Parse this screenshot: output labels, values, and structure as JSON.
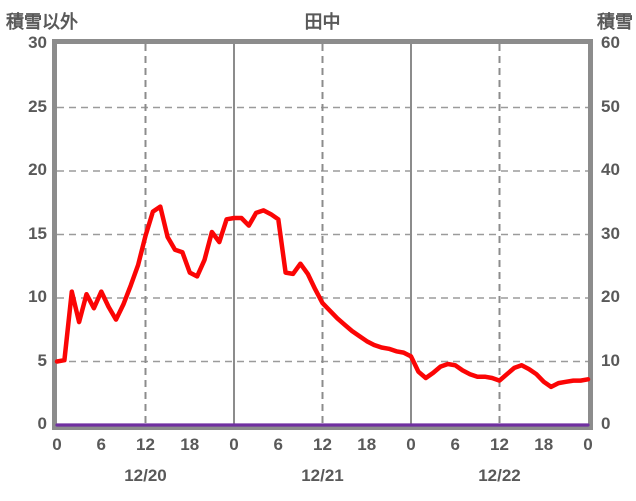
{
  "header": {
    "left_axis_title": "積雪以外",
    "chart_title": "田中",
    "right_axis_title": "積雪"
  },
  "colors": {
    "background": "#ffffff",
    "frame": "#8c8c8c",
    "grid_dashed": "#9b9b9b",
    "grid_vertical": "#8c8c8c",
    "text": "#595959",
    "red_series": "#fb0505",
    "purple_series": "#7030a0"
  },
  "chart_data": {
    "type": "line",
    "title": "田中",
    "left_axis": {
      "label": "積雪以外",
      "min": 0,
      "max": 30,
      "ticks": [
        0,
        5,
        10,
        15,
        20,
        25,
        30
      ]
    },
    "right_axis": {
      "label": "積雪",
      "min": 0,
      "max": 60,
      "ticks": [
        0,
        10,
        20,
        30,
        40,
        50,
        60
      ]
    },
    "x_axis": {
      "unit": "hours",
      "min_hour": 0,
      "max_hour": 72,
      "tick_step_hours": 6,
      "tick_labels": [
        "0",
        "6",
        "12",
        "18",
        "0",
        "6",
        "12",
        "18",
        "0",
        "6",
        "12",
        "18",
        "0"
      ],
      "date_labels": [
        {
          "label": "12/20",
          "hour": 12
        },
        {
          "label": "12/21",
          "hour": 36
        },
        {
          "label": "12/22",
          "hour": 60
        }
      ]
    },
    "gridlines": {
      "horizontal_dashed_at_left_values": [
        5,
        10,
        15,
        20,
        25
      ],
      "vertical_dashed_at_hours": [
        12,
        36,
        60
      ],
      "vertical_solid_at_hours": [
        24,
        48
      ]
    },
    "legend": "none",
    "series": [
      {
        "name": "積雪以外",
        "axis": "left",
        "color": "#fb0505",
        "x_step_hours": 1,
        "values": [
          5.0,
          5.1,
          10.5,
          8.1,
          10.3,
          9.2,
          10.5,
          9.3,
          8.3,
          9.5,
          11.0,
          12.6,
          14.9,
          16.8,
          17.2,
          14.8,
          13.8,
          13.6,
          12.0,
          11.7,
          13.0,
          15.2,
          14.4,
          16.2,
          16.3,
          16.3,
          15.7,
          16.7,
          16.9,
          16.6,
          16.2,
          12.0,
          11.9,
          12.7,
          11.9,
          10.7,
          9.6,
          9.0,
          8.4,
          7.9,
          7.4,
          7.0,
          6.6,
          6.3,
          6.1,
          6.0,
          5.8,
          5.7,
          5.4,
          4.2,
          3.7,
          4.1,
          4.6,
          4.8,
          4.7,
          4.3,
          4.0,
          3.8,
          3.8,
          3.7,
          3.5,
          4.0,
          4.5,
          4.7,
          4.4,
          4.0,
          3.4,
          3.0,
          3.3,
          3.4,
          3.5,
          3.5,
          3.6
        ]
      },
      {
        "name": "積雪",
        "axis": "right",
        "color": "#7030a0",
        "x_step_hours": 1,
        "values": [
          0,
          0,
          0,
          0,
          0,
          0,
          0,
          0,
          0,
          0,
          0,
          0,
          0,
          0,
          0,
          0,
          0,
          0,
          0,
          0,
          0,
          0,
          0,
          0,
          0,
          0,
          0,
          0,
          0,
          0,
          0,
          0,
          0,
          0,
          0,
          0,
          0,
          0,
          0,
          0,
          0,
          0,
          0,
          0,
          0,
          0,
          0,
          0,
          0,
          0,
          0,
          0,
          0,
          0,
          0,
          0,
          0,
          0,
          0,
          0,
          0,
          0,
          0,
          0,
          0,
          0,
          0,
          0,
          0,
          0,
          0,
          0,
          0
        ]
      }
    ]
  }
}
